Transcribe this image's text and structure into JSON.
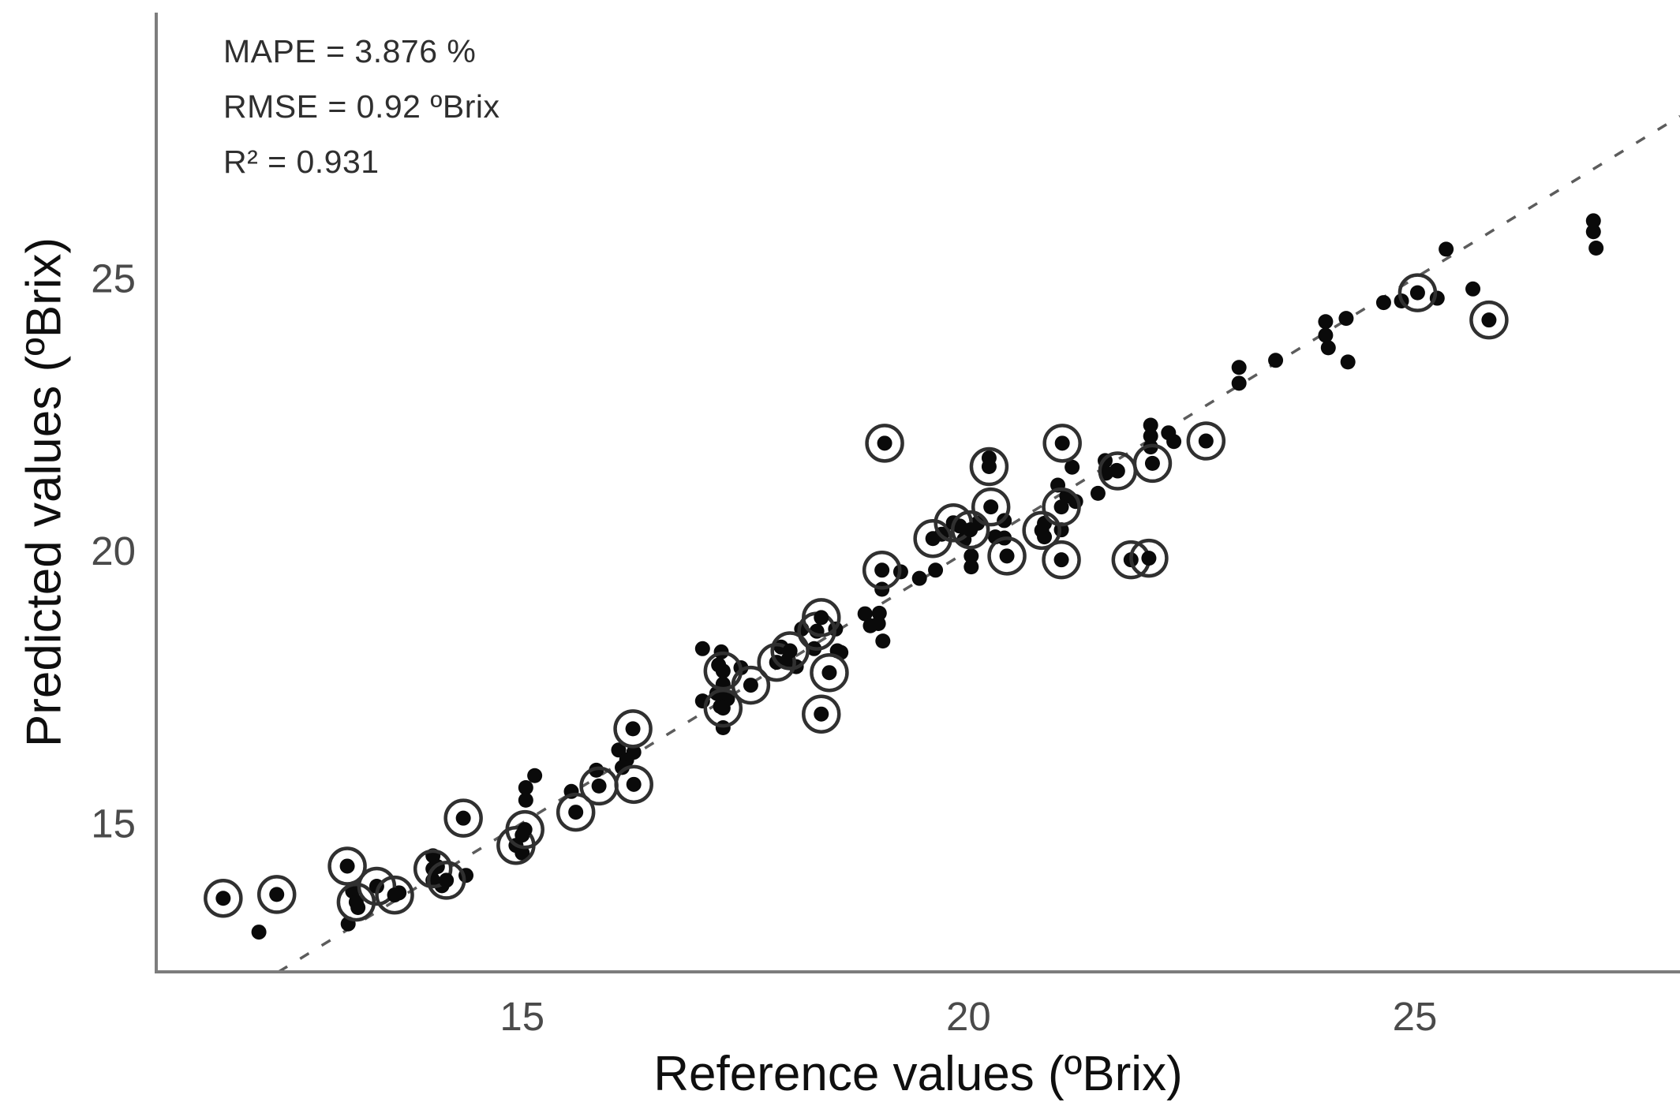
{
  "annotations": {
    "mape": "MAPE = 3.876 %",
    "rmse": "RMSE = 0.92 ºBrix",
    "r2": "R² = 0.931"
  },
  "colors": {
    "background": "#ffffff",
    "axis_line": "#7d7d7d",
    "dashed_line": "#5c5c5c",
    "tick_label": "#4a4a4a",
    "axis_title": "#0f0f0f",
    "stats_text": "#2f2f2f",
    "point_fill": "#0a0a0a",
    "ring_stroke": "#303030"
  },
  "chart_data": {
    "type": "scatter",
    "title": "",
    "xlabel": "Reference values (ºBrix)",
    "ylabel": "Predicted values (ºBrix)",
    "x_ticks": [
      15,
      20,
      25
    ],
    "y_ticks": [
      15,
      20,
      25
    ],
    "xlim": [
      10.9,
      27.97
    ],
    "ylim": [
      12.27,
      29.87
    ],
    "grid": false,
    "legend": "none",
    "stats": {
      "mape_pct": 3.876,
      "rmse_brix": 0.92,
      "r2": 0.931
    },
    "identity_line": {
      "style": "dashed",
      "equation": "y = x",
      "from": 12.27,
      "to": 27.97
    },
    "series": [
      {
        "name": "dot-markers",
        "marker": "filled-dot",
        "points": [
          [
            12.05,
            13.0
          ],
          [
            13.1,
            13.75
          ],
          [
            13.16,
            13.45
          ],
          [
            13.05,
            13.15
          ],
          [
            13.62,
            13.72
          ],
          [
            14.0,
            14.4
          ],
          [
            14.05,
            14.2
          ],
          [
            14.0,
            13.95
          ],
          [
            14.1,
            13.85
          ],
          [
            14.37,
            14.04
          ],
          [
            15.0,
            14.78
          ],
          [
            15.0,
            14.45
          ],
          [
            15.14,
            15.87
          ],
          [
            15.04,
            15.65
          ],
          [
            15.04,
            15.42
          ],
          [
            15.55,
            15.58
          ],
          [
            15.83,
            15.97
          ],
          [
            16.08,
            16.34
          ],
          [
            16.17,
            16.16
          ],
          [
            16.12,
            16.02
          ],
          [
            16.25,
            16.3
          ],
          [
            17.02,
            18.2
          ],
          [
            17.23,
            18.14
          ],
          [
            17.2,
            17.9
          ],
          [
            17.25,
            17.55
          ],
          [
            17.18,
            17.38
          ],
          [
            17.3,
            17.28
          ],
          [
            17.22,
            17.14
          ],
          [
            17.02,
            17.24
          ],
          [
            17.25,
            16.75
          ],
          [
            17.45,
            17.85
          ],
          [
            17.9,
            18.23
          ],
          [
            17.98,
            18.0
          ],
          [
            18.07,
            17.87
          ],
          [
            18.13,
            18.56
          ],
          [
            18.27,
            18.2
          ],
          [
            18.51,
            18.56
          ],
          [
            18.53,
            18.16
          ],
          [
            18.57,
            18.13
          ],
          [
            18.84,
            18.84
          ],
          [
            19.0,
            18.85
          ],
          [
            18.99,
            18.66
          ],
          [
            18.9,
            18.62
          ],
          [
            19.04,
            18.34
          ],
          [
            19.03,
            19.29
          ],
          [
            19.24,
            19.61
          ],
          [
            19.45,
            19.49
          ],
          [
            19.63,
            19.64
          ],
          [
            19.7,
            20.3
          ],
          [
            19.9,
            20.45
          ],
          [
            20.1,
            20.5
          ],
          [
            19.95,
            20.2
          ],
          [
            20.23,
            21.7
          ],
          [
            20.4,
            20.55
          ],
          [
            20.4,
            20.23
          ],
          [
            20.03,
            19.9
          ],
          [
            20.03,
            19.7
          ],
          [
            20.3,
            20.25
          ],
          [
            21.16,
            21.53
          ],
          [
            21.0,
            21.2
          ],
          [
            21.1,
            21.0
          ],
          [
            21.2,
            20.9
          ],
          [
            21.45,
            21.05
          ],
          [
            20.85,
            20.5
          ],
          [
            20.85,
            20.25
          ],
          [
            21.04,
            20.38
          ],
          [
            21.53,
            21.65
          ],
          [
            21.54,
            21.42
          ],
          [
            21.66,
            21.47
          ],
          [
            22.04,
            22.3
          ],
          [
            22.04,
            22.1
          ],
          [
            22.04,
            21.9
          ],
          [
            22.24,
            22.16
          ],
          [
            22.3,
            22.0
          ],
          [
            23.03,
            23.36
          ],
          [
            23.03,
            23.07
          ],
          [
            23.44,
            23.49
          ],
          [
            24.0,
            24.2
          ],
          [
            24.0,
            23.95
          ],
          [
            24.03,
            23.72
          ],
          [
            24.23,
            24.26
          ],
          [
            24.25,
            23.46
          ],
          [
            24.65,
            24.55
          ],
          [
            24.85,
            24.58
          ],
          [
            25.25,
            24.63
          ],
          [
            25.35,
            25.53
          ],
          [
            25.65,
            24.8
          ],
          [
            27.0,
            26.05
          ],
          [
            27.0,
            25.85
          ],
          [
            27.03,
            25.55
          ]
        ]
      },
      {
        "name": "circled-markers",
        "marker": "circled-dot",
        "points": [
          [
            11.65,
            13.62
          ],
          [
            12.25,
            13.69
          ],
          [
            13.04,
            14.21
          ],
          [
            13.14,
            13.55
          ],
          [
            13.37,
            13.84
          ],
          [
            13.57,
            13.68
          ],
          [
            14.0,
            14.16
          ],
          [
            14.15,
            13.95
          ],
          [
            14.34,
            15.09
          ],
          [
            14.93,
            14.59
          ],
          [
            15.03,
            14.88
          ],
          [
            15.6,
            15.2
          ],
          [
            15.86,
            15.68
          ],
          [
            16.24,
            16.73
          ],
          [
            16.25,
            15.71
          ],
          [
            17.25,
            17.79
          ],
          [
            17.25,
            17.11
          ],
          [
            17.56,
            17.53
          ],
          [
            17.85,
            17.95
          ],
          [
            18.0,
            18.16
          ],
          [
            18.3,
            18.52
          ],
          [
            18.35,
            18.77
          ],
          [
            18.44,
            17.76
          ],
          [
            18.35,
            17.0
          ],
          [
            19.03,
            19.64
          ],
          [
            19.06,
            21.97
          ],
          [
            19.6,
            20.22
          ],
          [
            19.83,
            20.51
          ],
          [
            20.02,
            20.38
          ],
          [
            20.23,
            21.54
          ],
          [
            20.25,
            20.8
          ],
          [
            20.43,
            19.9
          ],
          [
            20.82,
            20.37
          ],
          [
            21.04,
            20.8
          ],
          [
            21.04,
            19.83
          ],
          [
            21.05,
            21.97
          ],
          [
            21.67,
            21.46
          ],
          [
            21.82,
            19.83
          ],
          [
            22.02,
            19.86
          ],
          [
            22.06,
            21.6
          ],
          [
            22.66,
            22.01
          ],
          [
            25.03,
            24.73
          ],
          [
            25.83,
            24.23
          ]
        ]
      }
    ]
  },
  "layout_note": ""
}
